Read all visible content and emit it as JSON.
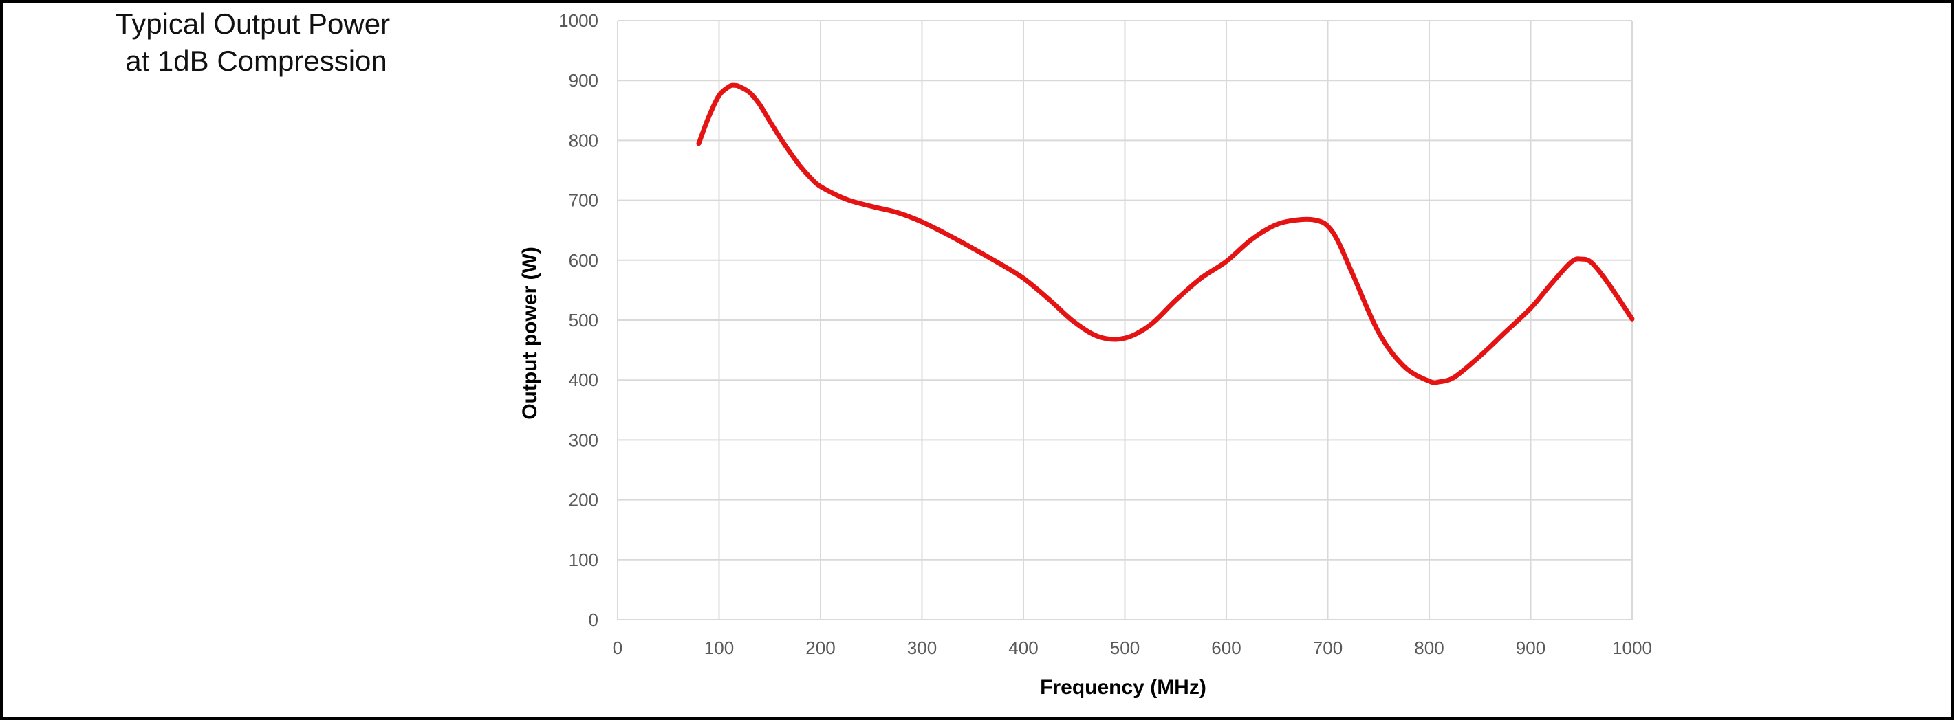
{
  "panel": {
    "title_line1": "Typical Output Power",
    "title_line2": "at 1dB Compression"
  },
  "chart_data": {
    "type": "line",
    "title": "",
    "xlabel": "Frequency (MHz)",
    "ylabel": "Output power (W)",
    "xlim": [
      0,
      1000
    ],
    "ylim": [
      0,
      1000
    ],
    "x_ticks": [
      0,
      100,
      200,
      300,
      400,
      500,
      600,
      700,
      800,
      900,
      1000
    ],
    "y_ticks": [
      0,
      100,
      200,
      300,
      400,
      500,
      600,
      700,
      800,
      900,
      1000
    ],
    "grid": true,
    "legend": "none",
    "line_color": "#e41414",
    "grid_color": "#d9d9d9",
    "series": [
      {
        "x": [
          80,
          90,
          100,
          110,
          115,
          120,
          130,
          140,
          150,
          160,
          170,
          180,
          190,
          200,
          225,
          250,
          275,
          300,
          325,
          350,
          375,
          400,
          425,
          450,
          475,
          500,
          525,
          550,
          575,
          600,
          625,
          650,
          675,
          690,
          700,
          710,
          725,
          750,
          775,
          800,
          810,
          825,
          850,
          875,
          900,
          920,
          940,
          950,
          960,
          975,
          1000
        ],
        "y": [
          795,
          840,
          875,
          890,
          892,
          890,
          880,
          860,
          832,
          805,
          780,
          757,
          738,
          723,
          702,
          690,
          680,
          664,
          643,
          620,
          596,
          570,
          535,
          497,
          472,
          470,
          492,
          533,
          570,
          598,
          635,
          660,
          668,
          666,
          657,
          632,
          575,
          480,
          423,
          398,
          397,
          405,
          440,
          480,
          520,
          560,
          597,
          602,
          596,
          565,
          502
        ]
      }
    ]
  }
}
